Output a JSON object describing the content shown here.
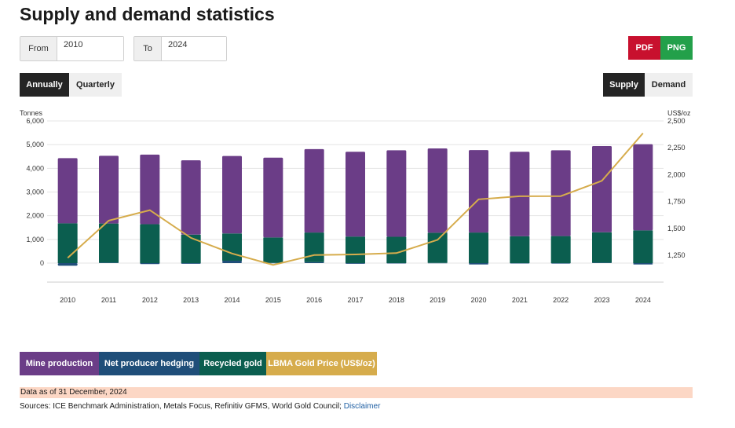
{
  "page": {
    "title": "Supply and demand statistics",
    "from_label": "From",
    "from_value": "2010",
    "to_label": "To",
    "to_value": "2024",
    "pdf_label": "PDF",
    "png_label": "PNG",
    "periods": [
      "Annually",
      "Quarterly"
    ],
    "active_period": "Annually",
    "views": [
      "Supply",
      "Demand"
    ],
    "active_view": "Supply",
    "legend": [
      "Mine production",
      "Net producer hedging",
      "Recycled gold",
      "LBMA Gold Price (US$/oz)"
    ],
    "note": "Data as of 31 December, 2024",
    "sources_text": "Sources: ICE Benchmark Administration, Metals Focus, Refinitiv GFMS, World Gold Council; ",
    "disclaimer_label": "Disclaimer"
  },
  "colors": {
    "mine": "#6b3d87",
    "hedging": "#1f4e79",
    "recycled": "#0b5e4f",
    "gold_price": "#d6ac4c",
    "pdf": "#c8102e",
    "png": "#23a04a",
    "note_bg": "#fcd7c5"
  },
  "chart_data": {
    "type": "bar",
    "stacked": true,
    "categories": [
      "2010",
      "2011",
      "2012",
      "2013",
      "2014",
      "2015",
      "2016",
      "2017",
      "2018",
      "2019",
      "2020",
      "2021",
      "2022",
      "2023",
      "2024"
    ],
    "series": [
      {
        "name": "Mine production",
        "type": "bar",
        "values": [
          2750,
          2860,
          2940,
          3140,
          3270,
          3370,
          3520,
          3580,
          3650,
          3560,
          3480,
          3570,
          3620,
          3640,
          3640
        ]
      },
      {
        "name": "Net producer hedging",
        "type": "bar",
        "values": [
          -110,
          20,
          -40,
          -30,
          100,
          10,
          40,
          -30,
          -10,
          10,
          -60,
          -10,
          -20,
          20,
          -60
        ]
      },
      {
        "name": "Recycled gold",
        "type": "bar",
        "values": [
          1680,
          1650,
          1640,
          1200,
          1150,
          1070,
          1250,
          1120,
          1110,
          1270,
          1290,
          1130,
          1140,
          1280,
          1380
        ]
      },
      {
        "name": "LBMA Gold Price (US$/oz)",
        "type": "line",
        "axis": "right",
        "values": [
          1225,
          1572,
          1669,
          1411,
          1266,
          1160,
          1251,
          1257,
          1269,
          1393,
          1770,
          1799,
          1800,
          1943,
          2386
        ]
      }
    ],
    "ylabel": "Tonnes",
    "y2label": "US$/oz",
    "ylim": [
      -800,
      6000
    ],
    "y_ticks": [
      0,
      1000,
      2000,
      3000,
      4000,
      5000,
      6000
    ],
    "y_tick_labels": [
      "0",
      "1,000",
      "2,000",
      "3,000",
      "4,000",
      "5,000",
      "6,000"
    ],
    "y2lim": [
      1000,
      2500
    ],
    "y2_ticks": [
      1250,
      1500,
      1750,
      2000,
      2250,
      2500
    ],
    "y2_tick_labels": [
      "1,250",
      "1,500",
      "1,750",
      "2,000",
      "2,250",
      "2,500"
    ],
    "grid": true,
    "legend_position": "bottom"
  }
}
